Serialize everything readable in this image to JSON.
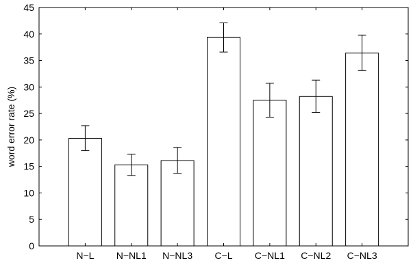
{
  "chart_data": {
    "type": "bar",
    "ylabel": "word error rate (%)",
    "ylim": [
      0,
      45
    ],
    "yticks": [
      0,
      5,
      10,
      15,
      20,
      25,
      30,
      35,
      40,
      45
    ],
    "categories": [
      "N−L",
      "N−NL1",
      "N−NL3",
      "C−L",
      "C−NL1",
      "C−NL2",
      "C−NL3"
    ],
    "values": [
      20.3,
      15.3,
      16.1,
      39.4,
      27.5,
      28.2,
      36.4
    ],
    "error_low": [
      18.0,
      13.3,
      13.7,
      36.6,
      24.3,
      25.2,
      33.1
    ],
    "error_high": [
      22.7,
      17.3,
      18.6,
      42.1,
      30.7,
      31.3,
      39.8
    ],
    "grid": false,
    "bar_fill": "#ffffff",
    "bar_edge": "#000000"
  }
}
